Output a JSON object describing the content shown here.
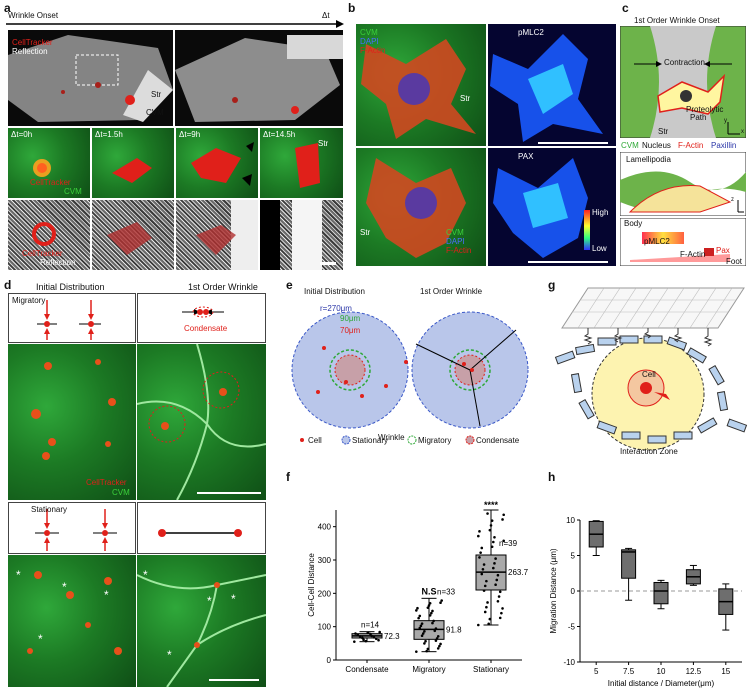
{
  "panels": {
    "a": {
      "label": "a",
      "timeline_left": "Wrinkle Onset",
      "timeline_right": "Δt",
      "legend1_a": "CellTracker",
      "legend1_b": "Reflection",
      "str": "Str",
      "cvm": "CVM",
      "times": [
        "Δt=0h",
        "Δt=1.5h",
        "Δt=9h",
        "Δt=14.5h"
      ],
      "legend2_a": "CellTracker",
      "legend2_b": "CVM",
      "legend3_a": "CellTracker",
      "legend3_b": "Reflection",
      "str2": "Str"
    },
    "b": {
      "label": "b",
      "cvm": "CVM",
      "dapi": "DAPI",
      "factin": "F-Actin",
      "pmlc2": "pMLC2",
      "str": "Str",
      "pax": "PAX",
      "high": "High",
      "low": "Low",
      "cvm2": "CVM",
      "dapi2": "DAPI",
      "factin2": "F-Actin",
      "str2": "Str"
    },
    "c": {
      "label": "c",
      "title": "1st Order Wrinkle Onset",
      "contraction": "Contraction",
      "proteolytic": "Proteolytic",
      "path": "Path",
      "str": "Str",
      "legend_cvm": "CVM",
      "legend_nucleus": "Nucleus",
      "legend_factin": "F-Actin",
      "legend_paxillin": "Paxillin",
      "lamellipodia": "Lamellipodia",
      "body": "Body",
      "pmlc2": "pMLC2",
      "factin": "F-Actin",
      "pax": "Pax",
      "foot": "Foot",
      "axis_x": "x",
      "axis_y": "y",
      "axis_z": "z"
    },
    "d": {
      "label": "d",
      "col1": "Initial Distribution",
      "col2": "1st Order Wrinkle",
      "migratory": "Migratory",
      "condensate": "Condensate",
      "legend_a": "CellTracker",
      "legend_b": "CVM",
      "stationary": "Stationary"
    },
    "e": {
      "label": "e",
      "title1": "Initial Distribution",
      "title2": "1st Order Wrinkle",
      "r_outer": "r=270μm",
      "r_mid": "90μm",
      "r_inner": "70μm",
      "wrinkle": "Wrinkle",
      "legend": [
        "Cell",
        "Stationary",
        "Migratory",
        "Condensate"
      ]
    },
    "f": {
      "label": "f"
    },
    "g": {
      "label": "g",
      "cell": "Cell",
      "zone": "Interaction Zone"
    },
    "h": {
      "label": "h"
    }
  },
  "colors": {
    "red": "#e0201a",
    "green": "#2ea836",
    "blue_fill": "#b9c6ea",
    "dashed_blue": "#3a58c8",
    "box_gray": "#a9a9a9",
    "dark_box": "#6e6e6e"
  },
  "chart_data": [
    {
      "id": "f",
      "type": "box",
      "ylabel": "Cell-Cell Distance",
      "ylim": [
        0,
        450
      ],
      "yticks": [
        0,
        100,
        200,
        300,
        400
      ],
      "categories": [
        "Condensate",
        "Migratory",
        "Stationary"
      ],
      "medians": [
        72.3,
        91.8,
        263.7
      ],
      "q1": [
        66,
        62,
        210
      ],
      "q3": [
        79,
        118,
        315
      ],
      "whisker_low": [
        55,
        25,
        105
      ],
      "whisker_high": [
        85,
        185,
        450
      ],
      "n": [
        "n=14",
        "n=33",
        "n=39"
      ],
      "median_labels": [
        "72.3",
        "91.8",
        "263.7"
      ],
      "significance": [
        "",
        "N.S",
        "****"
      ]
    },
    {
      "id": "h",
      "type": "box",
      "xlabel": "Initial distance / Diameter(μm)",
      "ylabel": "Migration Distance (μm)",
      "ylim": [
        -10,
        10
      ],
      "yticks": [
        -10,
        -5,
        0,
        5,
        10
      ],
      "categories": [
        "5",
        "7.5",
        "10",
        "12.5",
        "15"
      ],
      "medians": [
        8,
        5.5,
        0,
        2,
        -1.5
      ],
      "q1": [
        6.2,
        1.8,
        -1.8,
        1.0,
        -3.3
      ],
      "q3": [
        9.8,
        5.8,
        1.2,
        3.0,
        0.3
      ],
      "whisker_low": [
        5.0,
        -1.3,
        -2.5,
        0.8,
        -5.5
      ],
      "whisker_high": [
        9.9,
        6.0,
        1.5,
        3.6,
        1.0
      ]
    }
  ]
}
